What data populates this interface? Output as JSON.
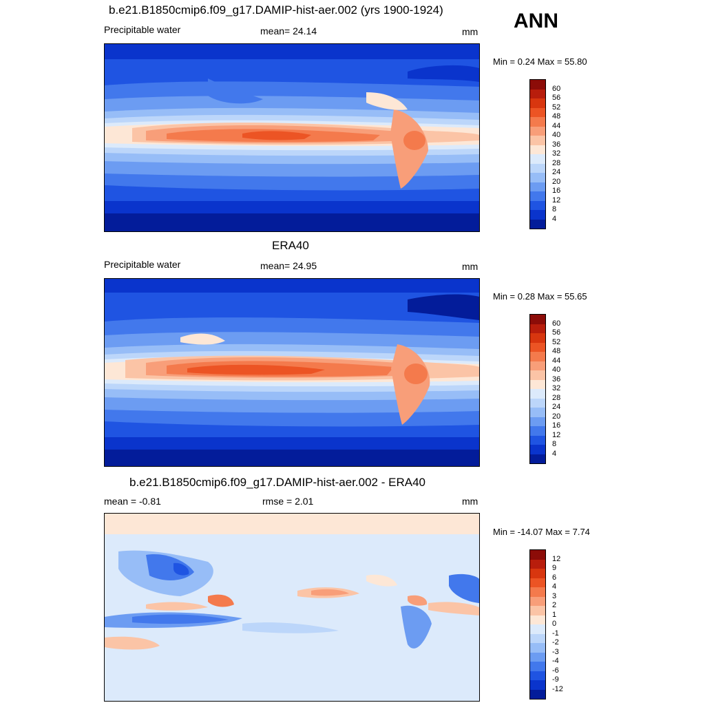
{
  "season": "ANN",
  "panels": [
    {
      "title": "b.e21.B1850cmip6.f09_g17.DAMIP-hist-aer.002 (yrs 1900-1924)",
      "left_label": "Precipitable water",
      "center_label": "mean=  24.14",
      "units": "mm",
      "minmax": "Min =   0.24 Max =  55.80"
    },
    {
      "title": "ERA40",
      "left_label": "Precipitable water",
      "center_label": "mean=  24.95",
      "units": "mm",
      "minmax": "Min =   0.28 Max =  55.65"
    },
    {
      "title": "b.e21.B1850cmip6.f09_g17.DAMIP-hist-aer.002 - ERA40",
      "left_label": "mean =  -0.81",
      "center_label": "rmse =   2.01",
      "units": "mm",
      "minmax": "Min = -14.07 Max =   7.74"
    }
  ],
  "colorbars": {
    "absolute": {
      "labels": [
        "60",
        "56",
        "52",
        "48",
        "44",
        "40",
        "36",
        "32",
        "28",
        "24",
        "20",
        "16",
        "12",
        "8",
        "4"
      ],
      "colors": [
        "#8c0c08",
        "#b81d0c",
        "#d8360f",
        "#ec5424",
        "#f47a4c",
        "#f89e79",
        "#fbc4a6",
        "#fde7d6",
        "#dceafb",
        "#bcd6fa",
        "#97bdf7",
        "#6c9cf2",
        "#4278ec",
        "#1f54e2",
        "#0a34cc",
        "#031c9a"
      ]
    },
    "difference": {
      "labels": [
        "12",
        "9",
        "6",
        "4",
        "3",
        "2",
        "1",
        "0",
        "-1",
        "-2",
        "-3",
        "-4",
        "-6",
        "-9",
        "-12"
      ],
      "colors": [
        "#8c0c08",
        "#b81d0c",
        "#d8360f",
        "#ec5424",
        "#f47a4c",
        "#f89e79",
        "#fbc4a6",
        "#fde7d6",
        "#dceafb",
        "#bcd6fa",
        "#97bdf7",
        "#6c9cf2",
        "#4278ec",
        "#1f54e2",
        "#0a34cc",
        "#031c9a"
      ]
    }
  }
}
